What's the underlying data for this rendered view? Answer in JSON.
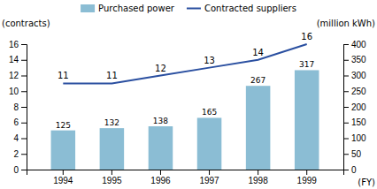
{
  "chart_data": {
    "type": "bar",
    "categories": [
      "1994",
      "1995",
      "1996",
      "1997",
      "1998",
      "1999"
    ],
    "series": [
      {
        "name": "Purchased power",
        "type": "bar",
        "color": "#8bbdd4",
        "axis": "y2",
        "values": [
          125,
          132,
          138,
          165,
          267,
          317
        ]
      },
      {
        "name": "Contracted suppliers",
        "type": "line",
        "color": "#2a4fa0",
        "values": [
          11,
          11,
          12,
          13,
          14,
          16
        ]
      }
    ],
    "x_label": "(FY)",
    "y_label": "(contracts)",
    "y2_label": "(million kWh)",
    "ylim": [
      0,
      16
    ],
    "yticks": [
      0,
      2,
      4,
      6,
      8,
      10,
      12,
      14,
      16
    ],
    "y2lim": [
      0,
      400
    ],
    "y2ticks": [
      0,
      50,
      100,
      150,
      200,
      250,
      300,
      350,
      400
    ],
    "data_labels": true,
    "legend": "top",
    "grid": false
  }
}
